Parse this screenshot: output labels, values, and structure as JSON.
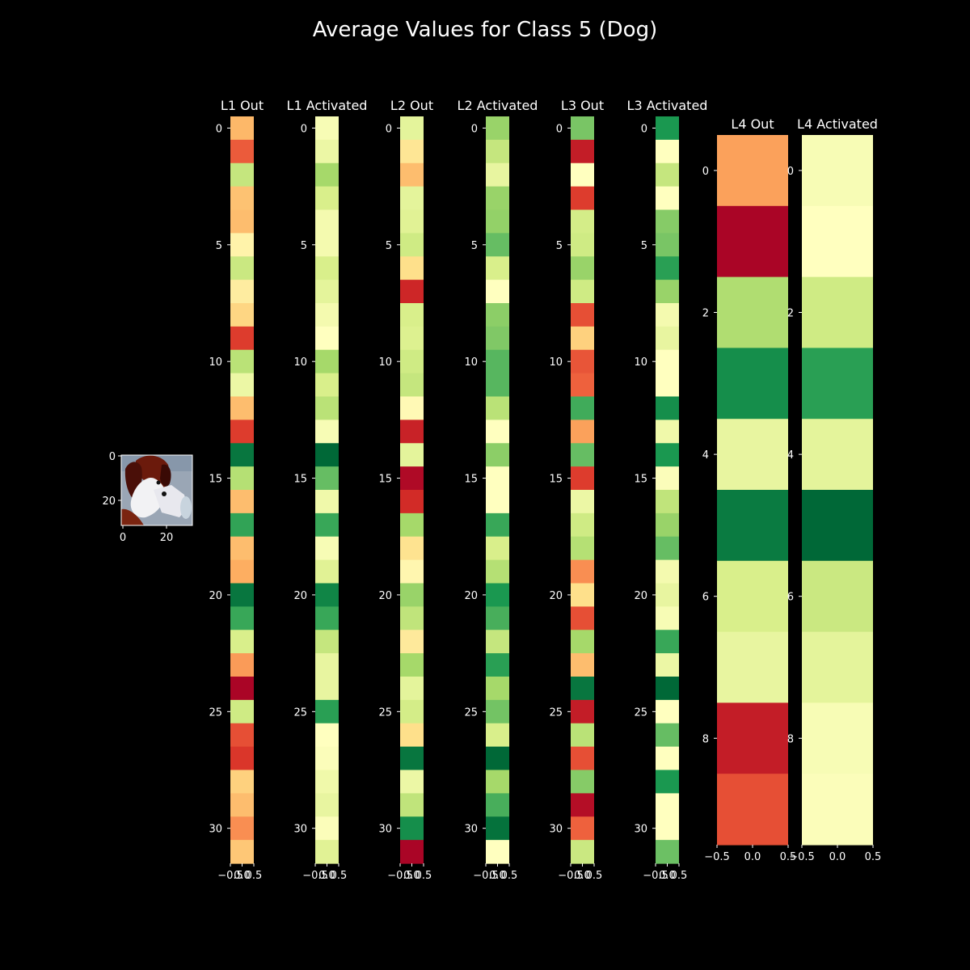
{
  "title": "Average Values for Class 5 (Dog)",
  "colormap": "RdYlGn",
  "colors": {
    "background": "#000000",
    "text": "#ffffff",
    "colormap_stops": [
      "#a50026",
      "#d73027",
      "#f46d43",
      "#fdae61",
      "#fee08b",
      "#ffffbf",
      "#d9ef8b",
      "#a6d96a",
      "#66bd63",
      "#1a9850",
      "#006837"
    ]
  },
  "input_image": {
    "description_icon": "dog-thumbnail",
    "y_ticks": [
      "0",
      "20"
    ],
    "x_ticks": [
      "0",
      "20"
    ]
  },
  "chart_data": [
    {
      "type": "heatmap",
      "title": "L1 Out",
      "y_ticks": [
        "0",
        "5",
        "10",
        "15",
        "20",
        "25",
        "30"
      ],
      "x_ticks": [
        "−0.5",
        "0.0",
        "0.5"
      ],
      "values": [
        0.32,
        0.17,
        0.64,
        0.34,
        0.33,
        0.46,
        0.63,
        0.44,
        0.38,
        0.12,
        0.66,
        0.55,
        0.33,
        0.12,
        0.97,
        0.67,
        0.33,
        0.87,
        0.33,
        0.3,
        0.97,
        0.86,
        0.6,
        0.27,
        0.01,
        0.62,
        0.15,
        0.11,
        0.37,
        0.33,
        0.25,
        0.35
      ]
    },
    {
      "type": "heatmap",
      "title": "L1 Activated",
      "y_ticks": [
        "0",
        "5",
        "10",
        "15",
        "20",
        "25",
        "30"
      ],
      "x_ticks": [
        "−0.5",
        "0.0",
        "0.5"
      ],
      "values": [
        0.52,
        0.55,
        0.7,
        0.6,
        0.53,
        0.53,
        0.6,
        0.57,
        0.53,
        0.5,
        0.7,
        0.6,
        0.66,
        0.52,
        1.0,
        0.8,
        0.54,
        0.86,
        0.52,
        0.58,
        0.94,
        0.86,
        0.64,
        0.56,
        0.56,
        0.88,
        0.5,
        0.51,
        0.54,
        0.56,
        0.51,
        0.58
      ]
    },
    {
      "type": "heatmap",
      "title": "L2 Out",
      "y_ticks": [
        "0",
        "5",
        "10",
        "15",
        "20",
        "25",
        "30"
      ],
      "x_ticks": [
        "−0.5",
        "0.0",
        "0.5"
      ],
      "values": [
        0.57,
        0.42,
        0.33,
        0.57,
        0.58,
        0.62,
        0.4,
        0.08,
        0.6,
        0.59,
        0.62,
        0.64,
        0.48,
        0.07,
        0.57,
        0.02,
        0.09,
        0.7,
        0.41,
        0.47,
        0.72,
        0.65,
        0.43,
        0.7,
        0.57,
        0.61,
        0.4,
        0.97,
        0.55,
        0.65,
        0.92,
        0.01
      ]
    },
    {
      "type": "heatmap",
      "title": "L2 Activated",
      "y_ticks": [
        "0",
        "5",
        "10",
        "15",
        "20",
        "25",
        "30"
      ],
      "x_ticks": [
        "−0.5",
        "0.0",
        "0.5"
      ],
      "values": [
        0.72,
        0.64,
        0.56,
        0.72,
        0.73,
        0.8,
        0.6,
        0.5,
        0.74,
        0.76,
        0.82,
        0.82,
        0.66,
        0.5,
        0.74,
        0.5,
        0.5,
        0.86,
        0.6,
        0.67,
        0.9,
        0.84,
        0.64,
        0.88,
        0.7,
        0.78,
        0.6,
        1.0,
        0.7,
        0.84,
        0.98,
        0.5
      ]
    },
    {
      "type": "heatmap",
      "title": "L3 Out",
      "y_ticks": [
        "0",
        "5",
        "10",
        "15",
        "20",
        "25",
        "30"
      ],
      "x_ticks": [
        "−0.5",
        "0.0",
        "0.5"
      ],
      "values": [
        0.77,
        0.06,
        0.5,
        0.12,
        0.61,
        0.62,
        0.72,
        0.62,
        0.15,
        0.37,
        0.16,
        0.18,
        0.85,
        0.28,
        0.8,
        0.12,
        0.55,
        0.62,
        0.67,
        0.25,
        0.4,
        0.15,
        0.7,
        0.33,
        0.97,
        0.06,
        0.66,
        0.15,
        0.75,
        0.03,
        0.18,
        0.63
      ]
    },
    {
      "type": "heatmap",
      "title": "L3 Activated",
      "y_ticks": [
        "0",
        "5",
        "10",
        "15",
        "20",
        "25",
        "30"
      ],
      "x_ticks": [
        "−0.5",
        "0.0",
        "0.5"
      ],
      "values": [
        0.9,
        0.5,
        0.64,
        0.5,
        0.75,
        0.77,
        0.88,
        0.72,
        0.53,
        0.56,
        0.5,
        0.5,
        0.92,
        0.54,
        0.9,
        0.51,
        0.65,
        0.72,
        0.8,
        0.53,
        0.56,
        0.52,
        0.86,
        0.55,
        1.0,
        0.5,
        0.8,
        0.5,
        0.9,
        0.5,
        0.5,
        0.79
      ]
    },
    {
      "type": "heatmap",
      "title": "L4 Out",
      "y_ticks": [
        "0",
        "2",
        "4",
        "6",
        "8"
      ],
      "x_ticks": [
        "−0.5",
        "0.0",
        "0.5"
      ],
      "values": [
        0.28,
        0.01,
        0.68,
        0.92,
        0.56,
        0.96,
        0.6,
        0.56,
        0.06,
        0.15
      ]
    },
    {
      "type": "heatmap",
      "title": "L4 Activated",
      "y_ticks": [
        "0",
        "2",
        "4",
        "6",
        "8"
      ],
      "x_ticks": [
        "−0.5",
        "0.0",
        "0.5"
      ],
      "values": [
        0.52,
        0.5,
        0.62,
        0.88,
        0.57,
        1.0,
        0.63,
        0.57,
        0.52,
        0.51
      ]
    }
  ]
}
